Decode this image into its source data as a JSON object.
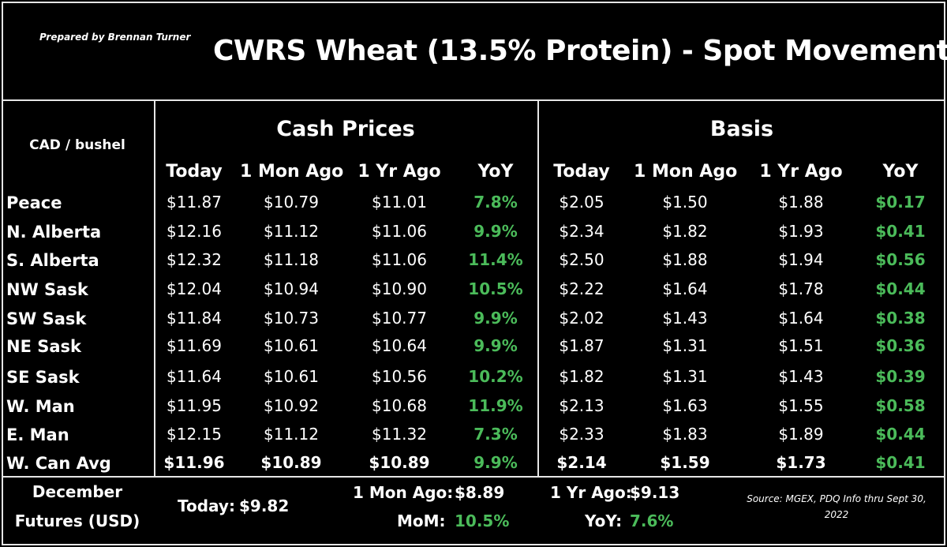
{
  "header": {
    "prepared_by": "Prepared by Brennan Turner",
    "title": "CWRS Wheat (13.5% Protein) - Spot Movement"
  },
  "chart_data": {
    "type": "table",
    "unit_label": "CAD / bushel",
    "groups": [
      "Cash Prices",
      "Basis"
    ],
    "columns": [
      "Today",
      "1 Mon Ago",
      "1 Yr Ago",
      "YoY"
    ],
    "rows": [
      {
        "region": "Peace",
        "cash": [
          "$11.87",
          "$10.79",
          "$11.01",
          "7.8%"
        ],
        "basis": [
          "$2.05",
          "$1.50",
          "$1.88",
          "$0.17"
        ]
      },
      {
        "region": "N. Alberta",
        "cash": [
          "$12.16",
          "$11.12",
          "$11.06",
          "9.9%"
        ],
        "basis": [
          "$2.34",
          "$1.82",
          "$1.93",
          "$0.41"
        ]
      },
      {
        "region": "S. Alberta",
        "cash": [
          "$12.32",
          "$11.18",
          "$11.06",
          "11.4%"
        ],
        "basis": [
          "$2.50",
          "$1.88",
          "$1.94",
          "$0.56"
        ]
      },
      {
        "region": "NW Sask",
        "cash": [
          "$12.04",
          "$10.94",
          "$10.90",
          "10.5%"
        ],
        "basis": [
          "$2.22",
          "$1.64",
          "$1.78",
          "$0.44"
        ]
      },
      {
        "region": "SW Sask",
        "cash": [
          "$11.84",
          "$10.73",
          "$10.77",
          "9.9%"
        ],
        "basis": [
          "$2.02",
          "$1.43",
          "$1.64",
          "$0.38"
        ]
      },
      {
        "region": "NE Sask",
        "cash": [
          "$11.69",
          "$10.61",
          "$10.64",
          "9.9%"
        ],
        "basis": [
          "$1.87",
          "$1.31",
          "$1.51",
          "$0.36"
        ]
      },
      {
        "region": "SE Sask",
        "cash": [
          "$11.64",
          "$10.61",
          "$10.56",
          "10.2%"
        ],
        "basis": [
          "$1.82",
          "$1.31",
          "$1.43",
          "$0.39"
        ]
      },
      {
        "region": "W. Man",
        "cash": [
          "$11.95",
          "$10.92",
          "$10.68",
          "11.9%"
        ],
        "basis": [
          "$2.13",
          "$1.63",
          "$1.55",
          "$0.58"
        ]
      },
      {
        "region": "E. Man",
        "cash": [
          "$12.15",
          "$11.12",
          "$11.32",
          "7.3%"
        ],
        "basis": [
          "$2.33",
          "$1.83",
          "$1.89",
          "$0.44"
        ]
      },
      {
        "region": "W. Can Avg",
        "cash": [
          "$11.96",
          "$10.89",
          "$10.89",
          "9.9%"
        ],
        "basis": [
          "$2.14",
          "$1.59",
          "$1.73",
          "$0.41"
        ]
      }
    ]
  },
  "futures": {
    "label_line1": "December",
    "label_line2": "Futures (USD)",
    "today_label": "Today:",
    "today_value": "$9.82",
    "mon_label": "1 Mon Ago:",
    "mon_value": "$8.89",
    "mom_label": "MoM:",
    "mom_value": "10.5%",
    "yr_label": "1 Yr Ago:",
    "yr_value": "$9.13",
    "yoy_label": "YoY:",
    "yoy_value": "7.6%"
  },
  "source": {
    "line1": "Source: MGEX, PDQ Info thru Sept 30,",
    "line2": "2022"
  },
  "colors": {
    "positive": "#4bbb5a",
    "text": "#ffffff",
    "background": "#000000"
  }
}
